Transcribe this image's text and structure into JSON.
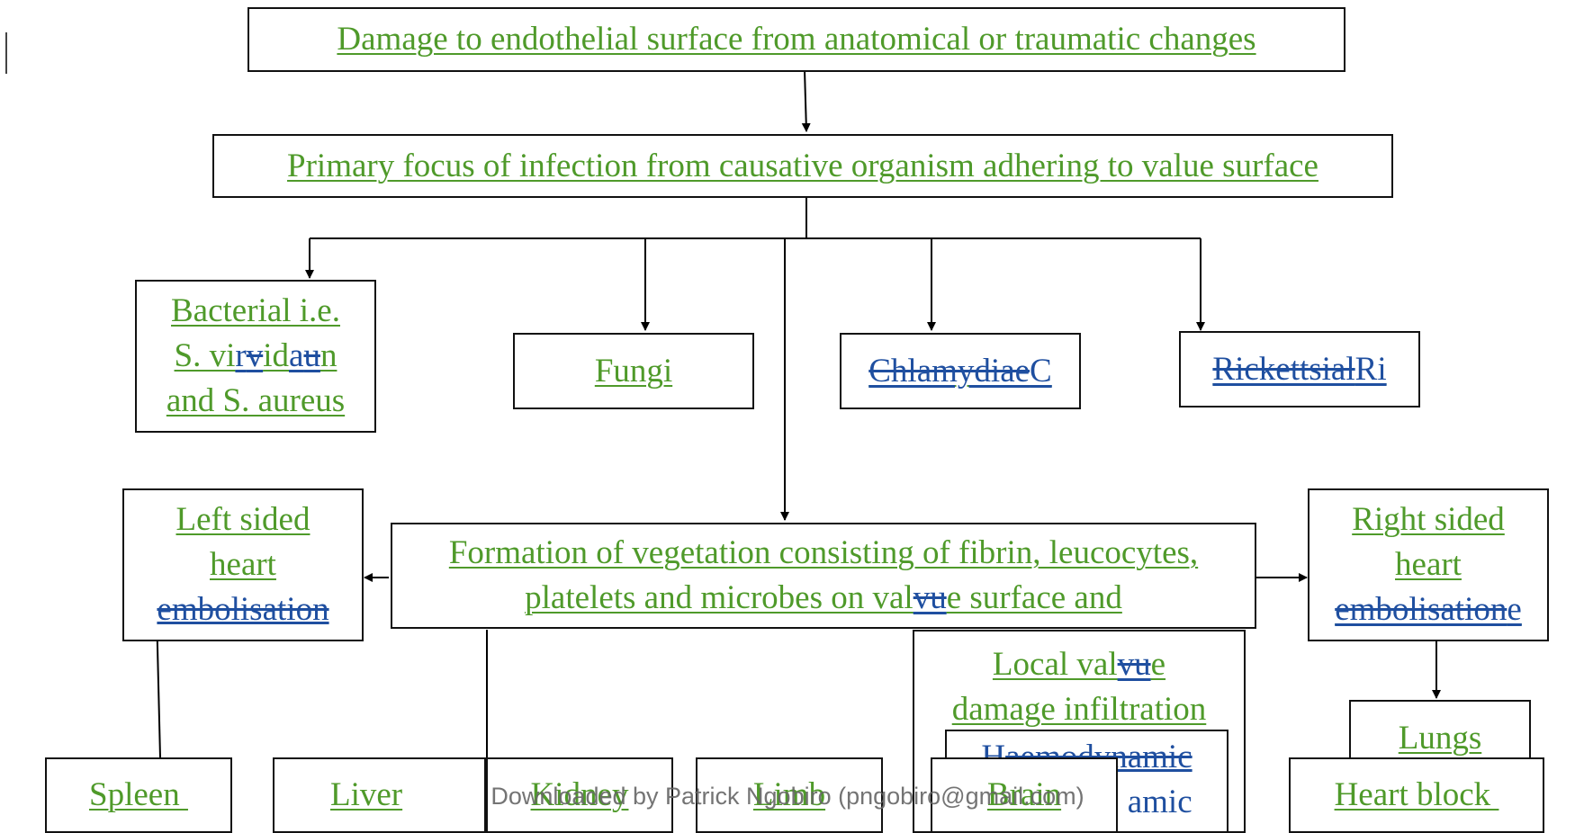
{
  "diagram": {
    "top_box": "Damage to endothelial surface from anatomical or traumatic changes",
    "primary_box": "Primary focus of infection from causative organism adhering to value surface",
    "bacterial": {
      "line1": "Bacterial i.e. ",
      "line2_a": "S. vi",
      "line2_ins1": "r",
      "line2_del1": "v",
      "line2_b": "id",
      "line2_ins2": "a",
      "line2_del2": "u",
      "line2_c": "n ",
      "line3": "and S. aureus"
    },
    "fungi": "Fungi",
    "chlamydiae": {
      "deleted": "Chlamydiae",
      "inserted": "C"
    },
    "rickettsial": {
      "deleted": "Rickettsial",
      "inserted": "Ri"
    },
    "vegetation": {
      "line1": "Formation of vegetation consisting of fibrin, leucocytes,",
      "line2_a": "platelets and microbes on val",
      "line2_del": "vu",
      "line2_b": "e surface and"
    },
    "left_embol": {
      "line1": "Left sided",
      "line2": "heart",
      "line3": "embolisation"
    },
    "right_embol": {
      "line1": "Right sided",
      "line2": "heart",
      "line3_del": "embolisation",
      "line3_ins": "e"
    },
    "local_valve": {
      "line1_a": "Local val",
      "line1_del": "vu",
      "line1_b": "e",
      "line2": "damage infiltration"
    },
    "haemodynamic": {
      "line1_a": "H",
      "line1_del": "aemodynamic",
      "line2": "amic"
    },
    "lungs": "Lungs",
    "spleen": "Spleen ",
    "liver": "Liver",
    "kidney": "Kidney",
    "limb": "Limb",
    "brain": "Brain",
    "heart_block": "Heart block "
  },
  "footer": {
    "watermark": "Downloaded by Patrick Ngobiro (pngobiro@gmail.com)"
  }
}
